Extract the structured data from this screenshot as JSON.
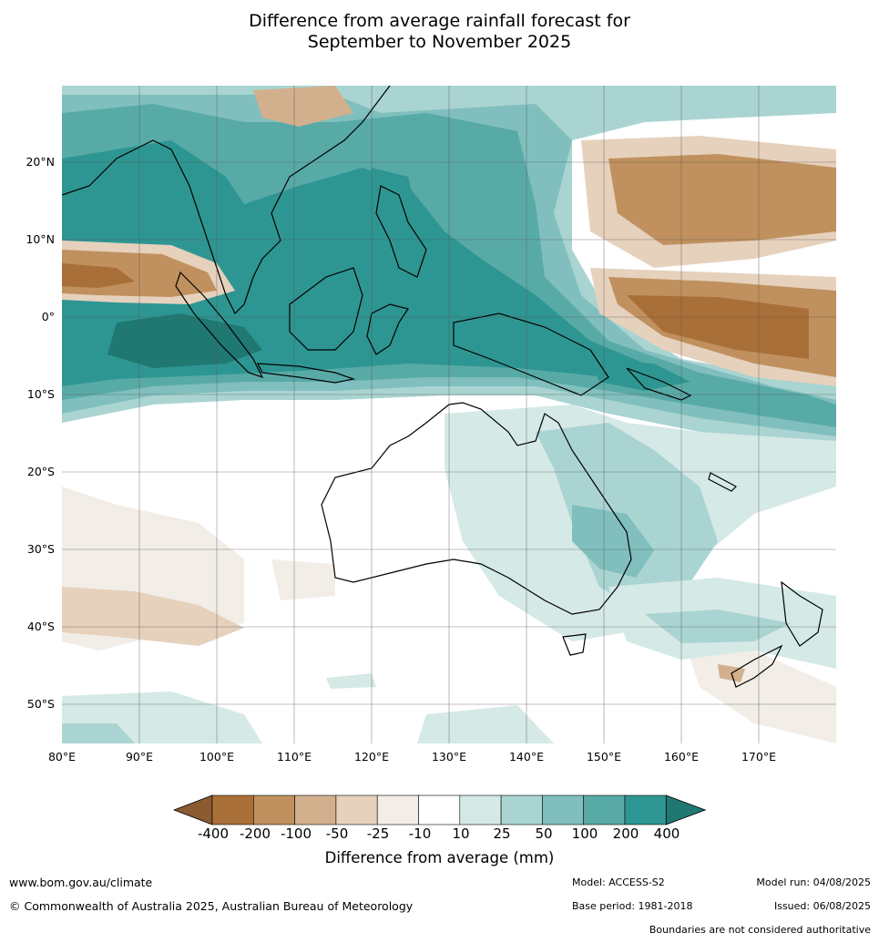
{
  "title_line1": "Difference from average rainfall forecast for",
  "title_line2": "September to November 2025",
  "lat_labels": [
    "20°N",
    "10°N",
    "0°",
    "10°S",
    "20°S",
    "30°S",
    "40°S",
    "50°S"
  ],
  "lon_labels": [
    "80°E",
    "90°E",
    "100°E",
    "110°E",
    "120°E",
    "130°E",
    "140°E",
    "150°E",
    "160°E",
    "170°E"
  ],
  "colorbar": {
    "title": "Difference from average (mm)",
    "tick_labels": [
      "-400",
      "-200",
      "-100",
      "-50",
      "-25",
      "-10",
      "10",
      "25",
      "50",
      "100",
      "200",
      "400"
    ],
    "colors": [
      "#8a5a30",
      "#a96f38",
      "#c0915e",
      "#d3b08d",
      "#e6d1bd",
      "#f2ede6",
      "#ffffff",
      "#d5e9e7",
      "#a9d4d1",
      "#80bfbd",
      "#58aaa7",
      "#2e9692",
      "#207873"
    ]
  },
  "legend_colors": {
    "dry_strong": "#a96f38",
    "dry_mid": "#c0915e",
    "dry_light": "#d3b08d",
    "dry_faint": "#f2ede6",
    "wet_faint": "#d5e9e7",
    "wet_light": "#a9d4d1",
    "wet_mid": "#80bfbd",
    "wet_med": "#58aaa7",
    "wet_strong": "#2e9692",
    "wet_extreme": "#207873"
  },
  "footer": {
    "website": "www.bom.gov.au/climate",
    "copyright": "© Commonwealth of Australia 2025, Australian Bureau of Meteorology",
    "model": "Model: ACCESS-S2",
    "base_period": "Base period: 1981-2018",
    "model_run": "Model run: 04/08/2025",
    "issued": "Issued: 06/08/2025",
    "disclaimer": "Boundaries are not considered authoritative"
  }
}
